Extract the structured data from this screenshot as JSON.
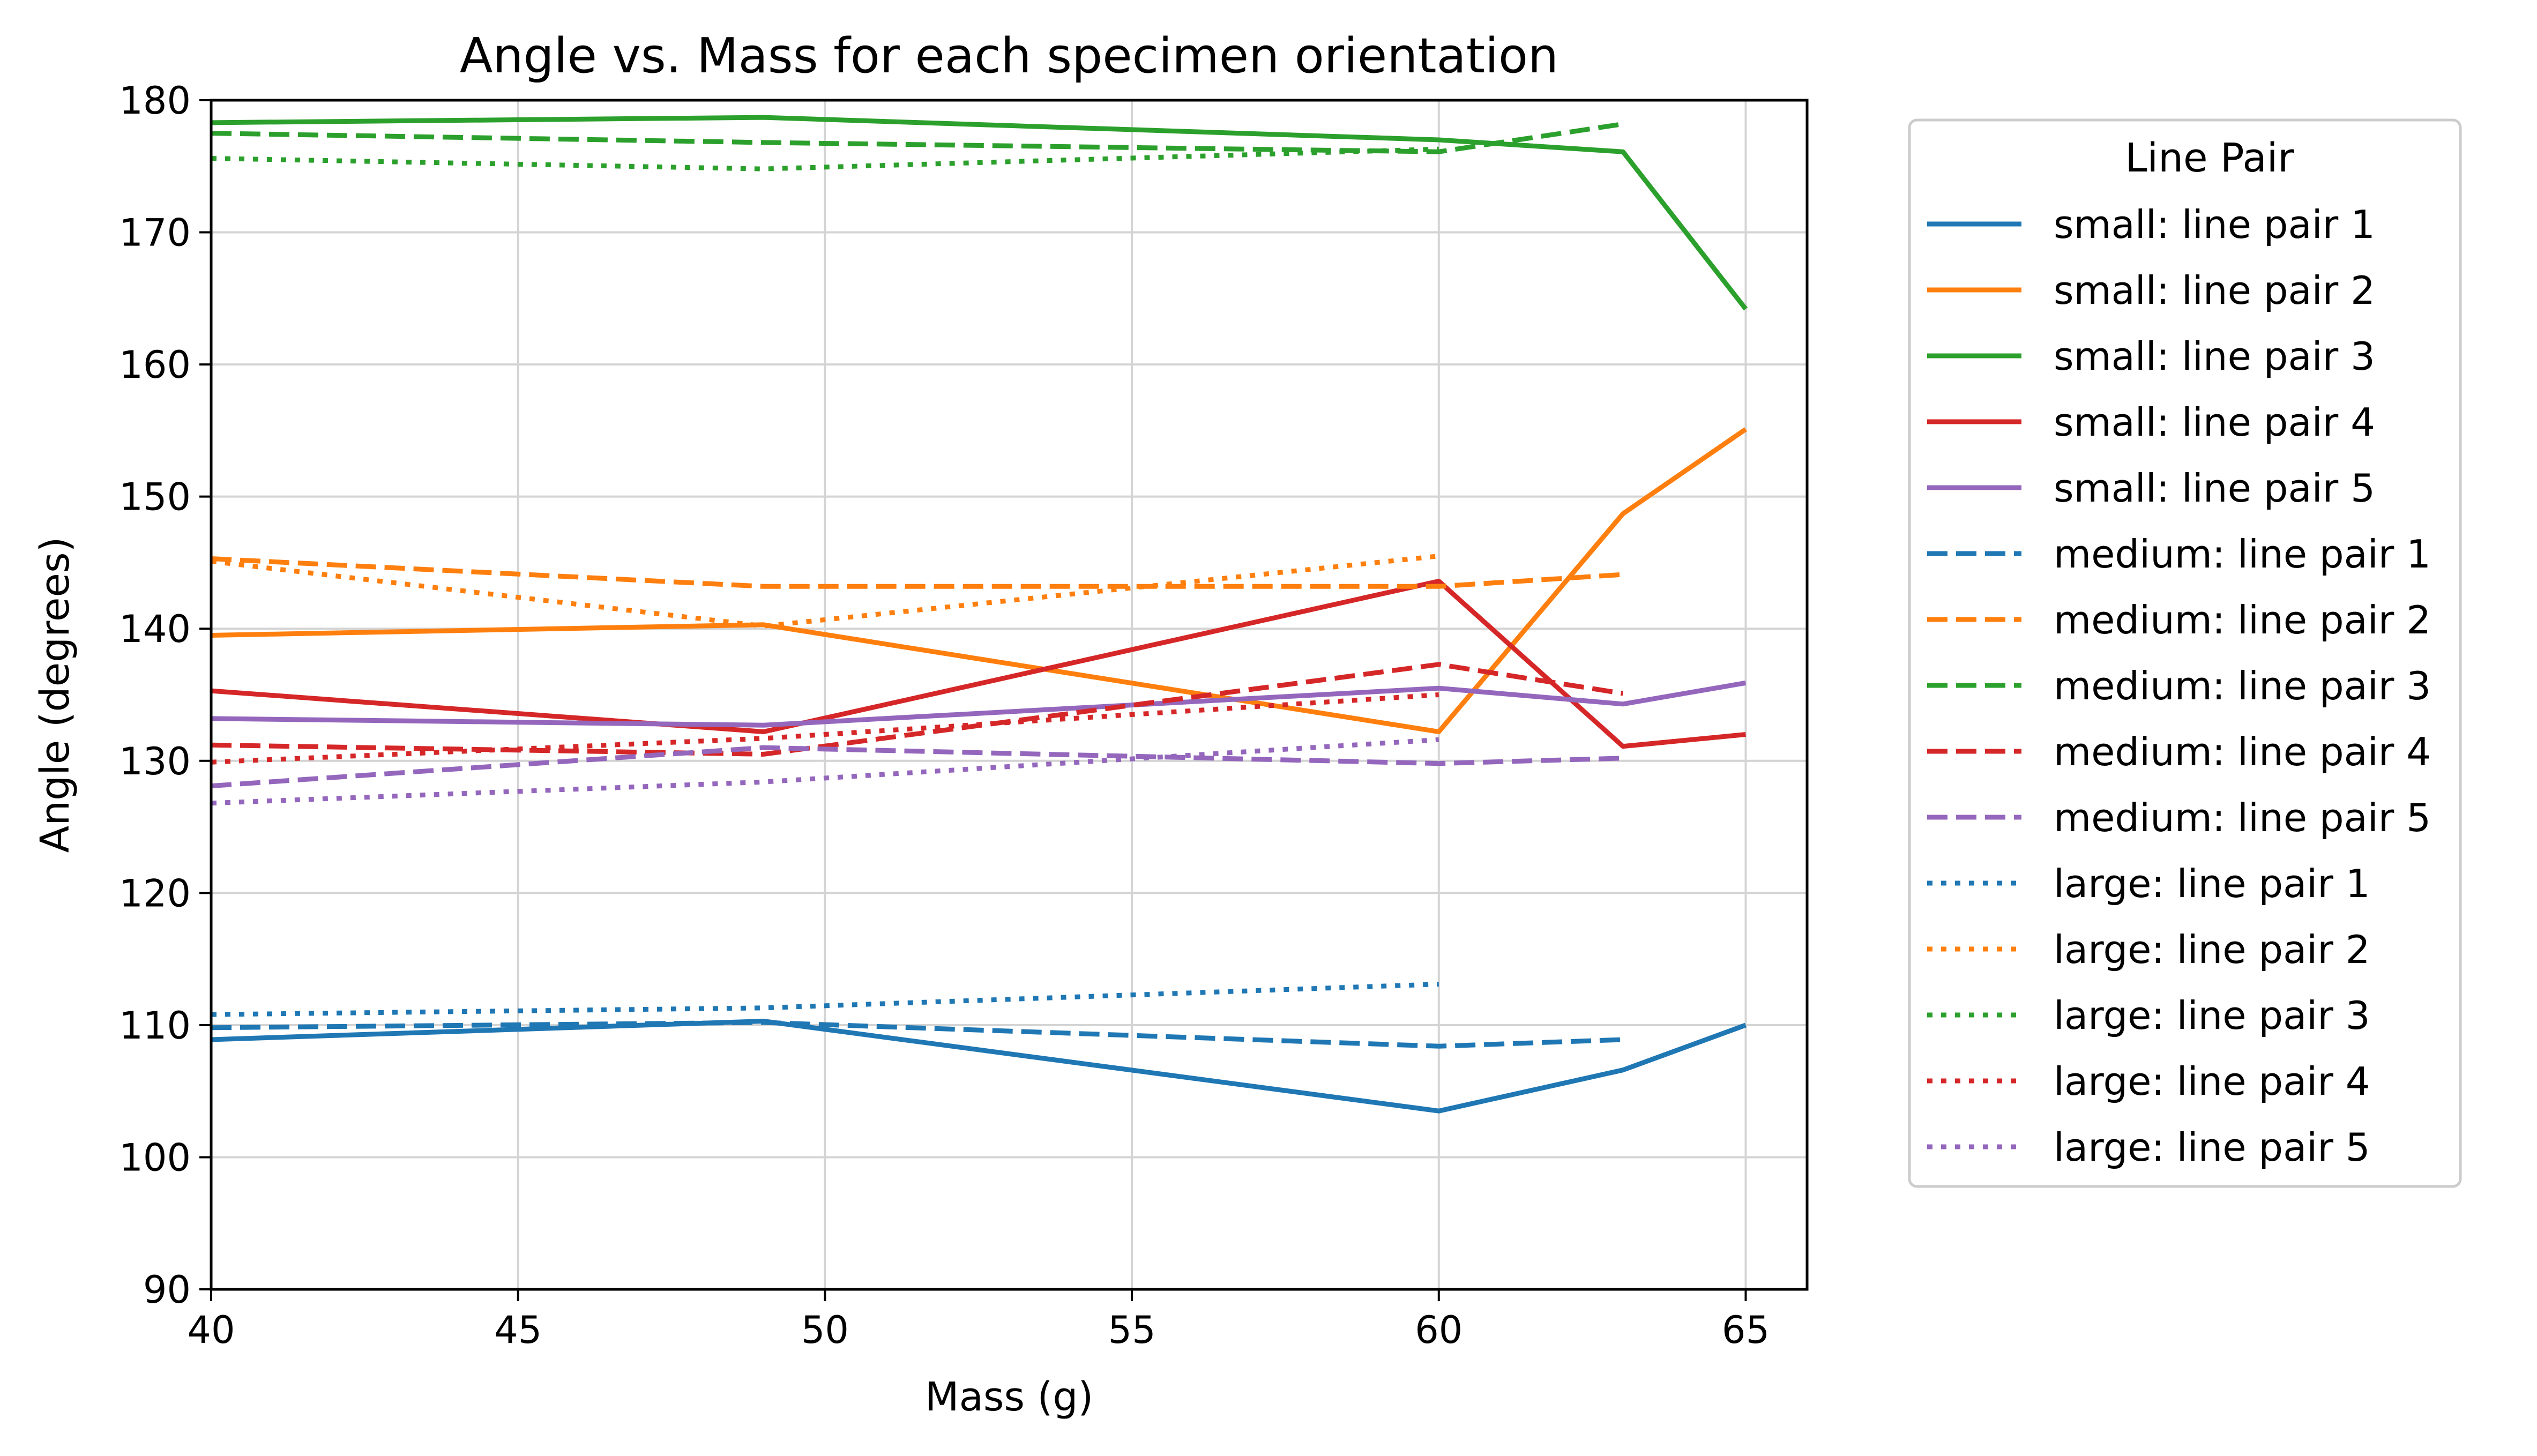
{
  "chart_data": {
    "type": "line",
    "title": "Angle vs. Mass for each specimen orientation",
    "xlabel": "Mass (g)",
    "ylabel": "Angle (degrees)",
    "xlim": [
      40,
      66
    ],
    "ylim": [
      90,
      180
    ],
    "xticks": [
      40,
      45,
      50,
      55,
      60,
      65
    ],
    "yticks": [
      90,
      100,
      110,
      120,
      130,
      140,
      150,
      160,
      170,
      180
    ],
    "grid": true,
    "legend": {
      "title": "Line Pair",
      "placement": "outside-right"
    },
    "colors": {
      "line pair 1": "#1f77b4",
      "line pair 2": "#ff7f0e",
      "line pair 3": "#2ca02c",
      "line pair 4": "#d62728",
      "line pair 5": "#9467bd"
    },
    "series": [
      {
        "name": "small: line pair 1",
        "style": "solid",
        "color": "#1f77b4",
        "x": [
          40,
          49,
          60,
          63,
          65
        ],
        "y": [
          108.9,
          110.3,
          103.5,
          106.6,
          110.0
        ]
      },
      {
        "name": "small: line pair 2",
        "style": "solid",
        "color": "#ff7f0e",
        "x": [
          40,
          49,
          60,
          63,
          65
        ],
        "y": [
          139.5,
          140.3,
          132.2,
          148.7,
          155.1
        ]
      },
      {
        "name": "small: line pair 3",
        "style": "solid",
        "color": "#2ca02c",
        "x": [
          40,
          49,
          60,
          63,
          65
        ],
        "y": [
          178.3,
          178.7,
          177.0,
          176.1,
          164.2
        ]
      },
      {
        "name": "small: line pair 4",
        "style": "solid",
        "color": "#d62728",
        "x": [
          40,
          49,
          60,
          63,
          65
        ],
        "y": [
          135.3,
          132.2,
          143.6,
          131.1,
          132.0
        ]
      },
      {
        "name": "small: line pair 5",
        "style": "solid",
        "color": "#9467bd",
        "x": [
          40,
          49,
          60,
          63,
          65
        ],
        "y": [
          133.2,
          132.7,
          135.5,
          134.3,
          135.9
        ]
      },
      {
        "name": "medium: line pair 1",
        "style": "dashed",
        "color": "#1f77b4",
        "x": [
          40,
          49,
          60,
          63
        ],
        "y": [
          109.8,
          110.2,
          108.4,
          108.9
        ]
      },
      {
        "name": "medium: line pair 2",
        "style": "dashed",
        "color": "#ff7f0e",
        "x": [
          40,
          49,
          60,
          63
        ],
        "y": [
          145.3,
          143.2,
          143.2,
          144.1
        ]
      },
      {
        "name": "medium: line pair 3",
        "style": "dashed",
        "color": "#2ca02c",
        "x": [
          40,
          49,
          60,
          63
        ],
        "y": [
          177.5,
          176.8,
          176.1,
          178.2
        ]
      },
      {
        "name": "medium: line pair 4",
        "style": "dashed",
        "color": "#d62728",
        "x": [
          40,
          49,
          60,
          63
        ],
        "y": [
          131.2,
          130.5,
          137.3,
          135.1
        ]
      },
      {
        "name": "medium: line pair 5",
        "style": "dashed",
        "color": "#9467bd",
        "x": [
          40,
          49,
          60,
          63
        ],
        "y": [
          128.1,
          131.0,
          129.8,
          130.2
        ]
      },
      {
        "name": "large: line pair 1",
        "style": "dotted",
        "color": "#1f77b4",
        "x": [
          40,
          49,
          60
        ],
        "y": [
          110.8,
          111.3,
          113.1
        ]
      },
      {
        "name": "large: line pair 2",
        "style": "dotted",
        "color": "#ff7f0e",
        "x": [
          40,
          49,
          60
        ],
        "y": [
          145.1,
          140.2,
          145.5
        ]
      },
      {
        "name": "large: line pair 3",
        "style": "dotted",
        "color": "#2ca02c",
        "x": [
          40,
          49,
          60
        ],
        "y": [
          175.6,
          174.8,
          176.3
        ]
      },
      {
        "name": "large: line pair 4",
        "style": "dotted",
        "color": "#d62728",
        "x": [
          40,
          49,
          60
        ],
        "y": [
          129.9,
          131.7,
          135.0
        ]
      },
      {
        "name": "large: line pair 5",
        "style": "dotted",
        "color": "#9467bd",
        "x": [
          40,
          49,
          60
        ],
        "y": [
          126.8,
          128.4,
          131.6
        ]
      }
    ]
  }
}
